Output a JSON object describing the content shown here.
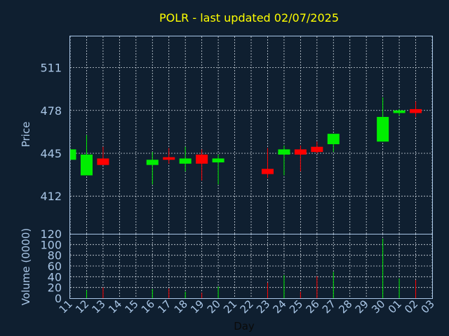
{
  "chart_data": [
    {
      "type": "candlestick",
      "title": "POLR - last updated 02/07/2025",
      "ylabel": "Price",
      "ylim": [
        383,
        535
      ],
      "yticks": [
        412,
        445,
        478,
        511
      ],
      "x_tick_labels": [
        "11",
        "12",
        "13",
        "14",
        "15",
        "16",
        "17",
        "18",
        "19",
        "20",
        "21",
        "22",
        "23",
        "24",
        "25",
        "26",
        "27",
        "28",
        "29",
        "30",
        "01",
        "02",
        "03"
      ],
      "grid": true,
      "up_color": "#00ee00",
      "down_color": "#ff0000",
      "candles": [
        {
          "x": "11",
          "open": 440,
          "high": 448,
          "low": 440,
          "close": 448
        },
        {
          "x": "12",
          "open": 428,
          "high": 459,
          "low": 428,
          "close": 444
        },
        {
          "x": "13",
          "open": 441,
          "high": 450,
          "low": 436,
          "close": 436
        },
        {
          "x": "16",
          "open": 436,
          "high": 446,
          "low": 421,
          "close": 440
        },
        {
          "x": "17",
          "open": 442,
          "high": 449,
          "low": 437,
          "close": 440
        },
        {
          "x": "18",
          "open": 437,
          "high": 450,
          "low": 431,
          "close": 441
        },
        {
          "x": "19",
          "open": 444,
          "high": 448,
          "low": 424,
          "close": 437
        },
        {
          "x": "20",
          "open": 438,
          "high": 444,
          "low": 421,
          "close": 441
        },
        {
          "x": "23",
          "open": 433,
          "high": 449,
          "low": 426,
          "close": 429
        },
        {
          "x": "24",
          "open": 444,
          "high": 451,
          "low": 428,
          "close": 448
        },
        {
          "x": "25",
          "open": 448,
          "high": 451,
          "low": 431,
          "close": 444
        },
        {
          "x": "26",
          "open": 450,
          "high": 454,
          "low": 445,
          "close": 446
        },
        {
          "x": "27",
          "open": 452,
          "high": 460,
          "low": 446,
          "close": 460
        },
        {
          "x": "30",
          "open": 454,
          "high": 488,
          "low": 454,
          "close": 473
        },
        {
          "x": "01",
          "open": 476,
          "high": 479,
          "low": 474,
          "close": 478
        },
        {
          "x": "02",
          "open": 479,
          "high": 485,
          "low": 473,
          "close": 476
        }
      ]
    },
    {
      "type": "bar",
      "ylabel": "Volume (0000)",
      "xlabel": "Day",
      "ylim": [
        0,
        120
      ],
      "yticks": [
        0,
        20,
        40,
        60,
        80,
        100,
        120
      ],
      "grid": true,
      "values": [
        {
          "x": "12",
          "value": 15,
          "direction": "up"
        },
        {
          "x": "13",
          "value": 20,
          "direction": "down"
        },
        {
          "x": "16",
          "value": 17,
          "direction": "up"
        },
        {
          "x": "17",
          "value": 18,
          "direction": "down"
        },
        {
          "x": "18",
          "value": 12,
          "direction": "up"
        },
        {
          "x": "19",
          "value": 10,
          "direction": "down"
        },
        {
          "x": "20",
          "value": 22,
          "direction": "up"
        },
        {
          "x": "23",
          "value": 29,
          "direction": "down"
        },
        {
          "x": "24",
          "value": 43,
          "direction": "up"
        },
        {
          "x": "25",
          "value": 12,
          "direction": "down"
        },
        {
          "x": "26",
          "value": 41,
          "direction": "down"
        },
        {
          "x": "27",
          "value": 49,
          "direction": "up"
        },
        {
          "x": "30",
          "value": 111,
          "direction": "up"
        },
        {
          "x": "01",
          "value": 37,
          "direction": "up"
        },
        {
          "x": "02",
          "value": 34,
          "direction": "down"
        }
      ]
    }
  ]
}
